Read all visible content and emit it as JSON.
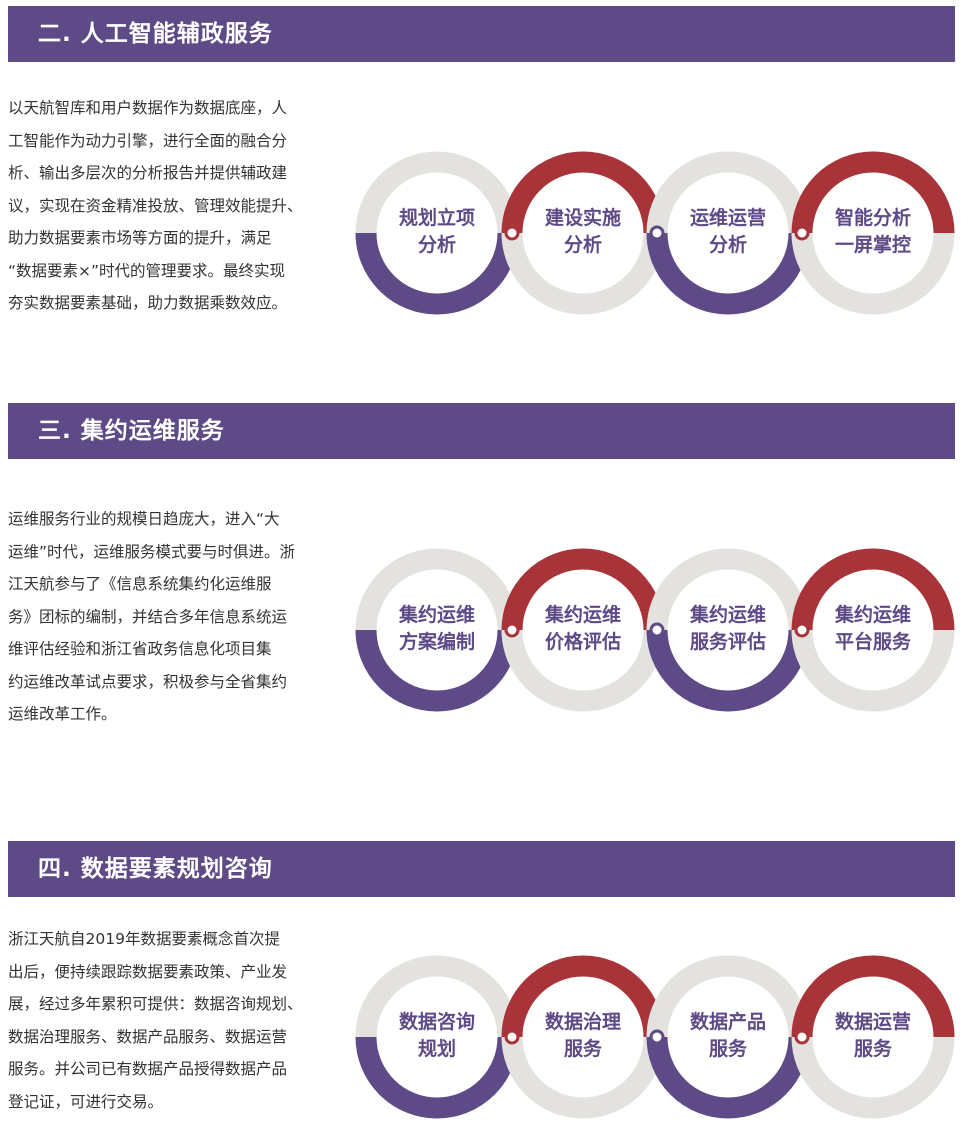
{
  "colors": {
    "purple": "#5e4a87",
    "red": "#a8343a",
    "gray": "#e3e2df"
  },
  "sections": [
    {
      "title": "二. 人工智能辅政服务",
      "text": [
        "以天航智库和用户数据作为数据底座，人",
        "工智能作为动力引擎，进行全面的融合分",
        "析、输出多层次的分析报告并提供辅政建",
        "议，实现在资金精准投放、管理效能提升、",
        "助力数据要素市场等方面的提升，满足",
        "“数据要素×”时代的管理要求。最终实现",
        "夯实数据要素基础，助力数据乘数效应。"
      ],
      "items": [
        [
          "规划立项",
          "分析"
        ],
        [
          "建设实施",
          "分析"
        ],
        [
          "运维运营",
          "分析"
        ],
        [
          "智能分析",
          "一屏掌控"
        ]
      ]
    },
    {
      "title": "三. 集约运维服务",
      "text": [
        "运维服务行业的规模日趋庞大，进入“大",
        "运维”时代，运维服务模式要与时俱进。浙",
        "江天航参与了《信息系统集约化运维服",
        "务》团标的编制，并结合多年信息系统运",
        "维评估经验和浙江省政务信息化项目集",
        "约运维改革试点要求，积极参与全省集约",
        "运维改革工作。"
      ],
      "items": [
        [
          "集约运维",
          "方案编制"
        ],
        [
          "集约运维",
          "价格评估"
        ],
        [
          "集约运维",
          "服务评估"
        ],
        [
          "集约运维",
          "平台服务"
        ]
      ]
    },
    {
      "title": "四. 数据要素规划咨询",
      "text": [
        "浙江天航自2019年数据要素概念首次提",
        "出后，便持续跟踪数据要素政策、产业发",
        "展，经过多年累积可提供：数据咨询规划、",
        "数据治理服务、数据产品服务、数据运营",
        "服务。并公司已有数据产品授得数据产品",
        "登记证，可进行交易。"
      ],
      "items": [
        [
          "数据咨询",
          "规划"
        ],
        [
          "数据治理",
          "服务"
        ],
        [
          "数据产品",
          "服务"
        ],
        [
          "数据运营",
          "服务"
        ]
      ]
    }
  ]
}
